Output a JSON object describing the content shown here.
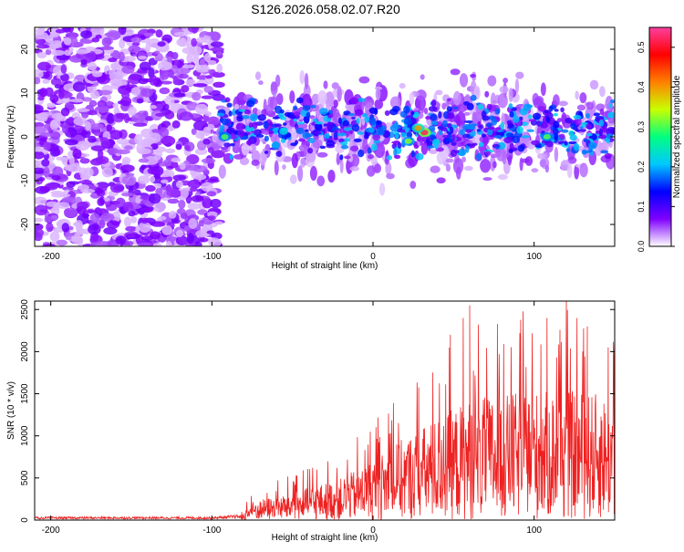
{
  "title": "S126.2026.058.02.07.R20",
  "chart_data": [
    {
      "type": "heatmap",
      "name": "spectrogram",
      "xlabel": "Height of straight line (km)",
      "ylabel": "Frequency (Hz)",
      "xlim": [
        -210,
        150
      ],
      "ylim": [
        -25,
        25
      ],
      "x_ticks": [
        -200,
        -100,
        0,
        100
      ],
      "y_ticks": [
        -20,
        -10,
        0,
        10,
        20
      ],
      "colorbar": {
        "label": "Normalized spectral amplitude",
        "range": [
          0.0,
          0.55
        ],
        "ticks": [
          0.0,
          0.1,
          0.2,
          0.3,
          0.4,
          0.5
        ],
        "tick_labels": [
          "0.0",
          "0.1",
          "0.2",
          "0.3",
          "0.4",
          "0.5"
        ],
        "colors": [
          "#ffffff",
          "#7f00ff",
          "#0000ff",
          "#00c8ff",
          "#00ff80",
          "#c8ff00",
          "#ff8000",
          "#ff0000",
          "#ff3fa0"
        ]
      },
      "regions": [
        {
          "x_range": [
            -210,
            -95
          ],
          "description": "noise",
          "freq_spread": 25,
          "amplitude": 0.05
        },
        {
          "x_range": [
            -95,
            150
          ],
          "description": "signal",
          "freq_center": 2,
          "freq_spread": 8,
          "amplitude": 0.2
        }
      ],
      "hotspots": [
        {
          "x": 32,
          "y": 1,
          "value": 0.52
        },
        {
          "x": 28,
          "y": 2,
          "value": 0.4
        },
        {
          "x": 22,
          "y": -1,
          "value": 0.32
        },
        {
          "x": 108,
          "y": 0,
          "value": 0.3
        },
        {
          "x": -92,
          "y": 0,
          "value": 0.3
        }
      ]
    },
    {
      "type": "line",
      "name": "snr",
      "xlabel": "Height of straight line (km)",
      "ylabel": "SNR (10 * v/v)",
      "xlim": [
        -210,
        150
      ],
      "ylim": [
        0,
        2600
      ],
      "x_ticks": [
        -200,
        -100,
        0,
        100
      ],
      "y_ticks": [
        0,
        500,
        1000,
        1500,
        2000,
        2500
      ],
      "color": "#ee2222",
      "envelope": [
        {
          "x": -210,
          "y": 30
        },
        {
          "x": -100,
          "y": 30
        },
        {
          "x": -82,
          "y": 50
        },
        {
          "x": -75,
          "y": 200
        },
        {
          "x": -50,
          "y": 300
        },
        {
          "x": -20,
          "y": 450
        },
        {
          "x": 0,
          "y": 650
        },
        {
          "x": 20,
          "y": 900
        },
        {
          "x": 40,
          "y": 1100
        },
        {
          "x": 60,
          "y": 1300
        },
        {
          "x": 80,
          "y": 1350
        },
        {
          "x": 100,
          "y": 1400
        },
        {
          "x": 120,
          "y": 1400
        },
        {
          "x": 150,
          "y": 1350
        }
      ],
      "peaks": [
        {
          "x": 60,
          "y": 2550
        },
        {
          "x": 120,
          "y": 2600
        },
        {
          "x": 108,
          "y": 2400
        },
        {
          "x": 133,
          "y": 2300
        },
        {
          "x": 48,
          "y": 2200
        },
        {
          "x": 56,
          "y": 2400
        },
        {
          "x": 146,
          "y": 2050
        }
      ]
    }
  ]
}
